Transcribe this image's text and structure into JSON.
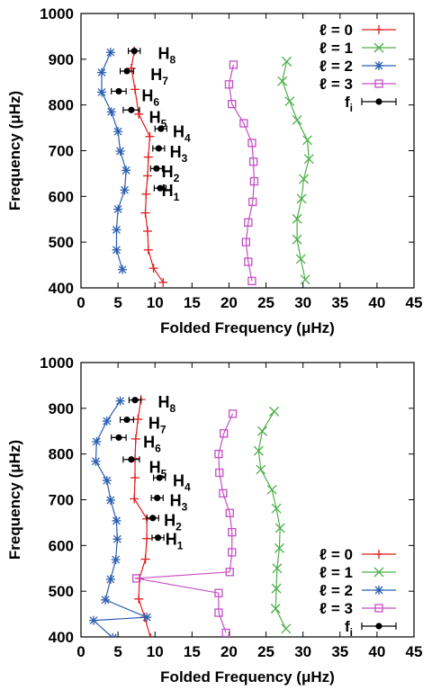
{
  "chart_data": [
    {
      "type": "line",
      "xlabel": "Folded Frequency (μHz)",
      "ylabel": "Frequency (μHz)",
      "xlim": [
        0,
        45
      ],
      "ylim": [
        400,
        1000
      ],
      "x_ticks": [
        "0",
        "5",
        "10",
        "15",
        "20",
        "25",
        "30",
        "35",
        "40",
        "45"
      ],
      "y_ticks": [
        "400",
        "500",
        "600",
        "700",
        "800",
        "900",
        "1000"
      ],
      "legend_position": "top-right",
      "series": [
        {
          "name": "ℓ = 0",
          "color": "#e31a1c",
          "marker": "plus",
          "points": [
            [
              11.1,
              412
            ],
            [
              9.8,
              443
            ],
            [
              9.1,
              483
            ],
            [
              9.0,
              524
            ],
            [
              8.7,
              564
            ],
            [
              8.8,
              605
            ],
            [
              9.0,
              645
            ],
            [
              9.1,
              686
            ],
            [
              9.3,
              731
            ],
            [
              7.8,
              780
            ],
            [
              7.3,
              834
            ],
            [
              6.8,
              880
            ],
            [
              7.2,
              918
            ]
          ]
        },
        {
          "name": "ℓ = 1",
          "color": "#4daf4a",
          "marker": "cross",
          "points": [
            [
              30.3,
              418
            ],
            [
              29.7,
              463
            ],
            [
              29.2,
              506
            ],
            [
              29.2,
              551
            ],
            [
              29.8,
              595
            ],
            [
              30.1,
              638
            ],
            [
              30.8,
              682
            ],
            [
              30.6,
              723
            ],
            [
              29.2,
              767
            ],
            [
              28.2,
              808
            ],
            [
              27.2,
              852
            ],
            [
              27.8,
              895
            ]
          ]
        },
        {
          "name": "ℓ = 2",
          "color": "#2c5fb0",
          "marker": "star",
          "points": [
            [
              5.6,
              440
            ],
            [
              4.8,
              483
            ],
            [
              4.8,
              527
            ],
            [
              5.0,
              572
            ],
            [
              5.9,
              614
            ],
            [
              6.1,
              657
            ],
            [
              5.3,
              699
            ],
            [
              5.0,
              742
            ],
            [
              4.1,
              785
            ],
            [
              2.8,
              828
            ],
            [
              2.8,
              871
            ],
            [
              4.0,
              915
            ]
          ]
        },
        {
          "name": "ℓ = 3",
          "color": "#c44ec4",
          "marker": "square",
          "points": [
            [
              23.1,
              415
            ],
            [
              22.6,
              457
            ],
            [
              22.3,
              500
            ],
            [
              22.6,
              543
            ],
            [
              23.2,
              588
            ],
            [
              23.4,
              633
            ],
            [
              23.3,
              676
            ],
            [
              23.1,
              717
            ],
            [
              22.0,
              760
            ],
            [
              20.4,
              802
            ],
            [
              20.0,
              845
            ],
            [
              20.6,
              888
            ]
          ]
        }
      ],
      "fi": {
        "name": "f",
        "name_sub": "i",
        "color": "#000000",
        "points": [
          [
            10.7,
            618,
            0.8
          ],
          [
            10.2,
            661,
            0.8
          ],
          [
            10.5,
            705,
            0.8
          ],
          [
            10.8,
            748,
            0.8
          ],
          [
            6.8,
            789,
            1.1
          ],
          [
            5.1,
            830,
            1.0
          ],
          [
            6.2,
            874,
            0.9
          ],
          [
            7.2,
            918,
            0.8
          ]
        ]
      },
      "annotations": [
        {
          "label": "H",
          "sub": "1",
          "x": 10.9,
          "y": 612
        },
        {
          "label": "H",
          "sub": "2",
          "x": 10.9,
          "y": 654
        },
        {
          "label": "H",
          "sub": "3",
          "x": 12.0,
          "y": 697
        },
        {
          "label": "H",
          "sub": "4",
          "x": 12.4,
          "y": 741
        },
        {
          "label": "H",
          "sub": "5",
          "x": 9.2,
          "y": 773
        },
        {
          "label": "H",
          "sub": "6",
          "x": 8.2,
          "y": 820
        },
        {
          "label": "H",
          "sub": "7",
          "x": 9.4,
          "y": 866
        },
        {
          "label": "H",
          "sub": "8",
          "x": 10.4,
          "y": 912
        }
      ]
    },
    {
      "type": "line",
      "xlabel": "Folded Frequency (μHz)",
      "ylabel": "Frequency (μHz)",
      "xlim": [
        0,
        45
      ],
      "ylim": [
        400,
        1000
      ],
      "x_ticks": [
        "0",
        "5",
        "10",
        "15",
        "20",
        "25",
        "30",
        "35",
        "40",
        "45"
      ],
      "y_ticks": [
        "400",
        "500",
        "600",
        "700",
        "800",
        "900",
        "1000"
      ],
      "legend_position": "bottom-right",
      "series": [
        {
          "name": "ℓ = 0",
          "color": "#e31a1c",
          "marker": "plus",
          "points": [
            [
              9.4,
              398
            ],
            [
              8.6,
              443
            ],
            [
              7.8,
              483
            ],
            [
              7.9,
              528
            ],
            [
              8.7,
              570
            ],
            [
              8.9,
              615
            ],
            [
              8.9,
              658
            ],
            [
              7.2,
              702
            ],
            [
              7.3,
              748
            ],
            [
              7.3,
              790
            ],
            [
              7.4,
              833
            ],
            [
              7.7,
              876
            ],
            [
              8.1,
              919
            ]
          ]
        },
        {
          "name": "ℓ = 1",
          "color": "#4daf4a",
          "marker": "cross",
          "points": [
            [
              27.7,
              418
            ],
            [
              26.3,
              462
            ],
            [
              26.4,
              506
            ],
            [
              26.5,
              550
            ],
            [
              26.8,
              594
            ],
            [
              26.9,
              638
            ],
            [
              26.4,
              681
            ],
            [
              25.8,
              722
            ],
            [
              24.3,
              766
            ],
            [
              24.0,
              807
            ],
            [
              24.5,
              850
            ],
            [
              26.1,
              893
            ]
          ]
        },
        {
          "name": "ℓ = 2",
          "color": "#2c5fb0",
          "marker": "star",
          "points": [
            [
              4.3,
              398
            ],
            [
              1.7,
              436
            ],
            [
              8.9,
              443
            ],
            [
              3.3,
              481
            ],
            [
              4.0,
              526
            ],
            [
              4.7,
              569
            ],
            [
              4.9,
              614
            ],
            [
              4.8,
              654
            ],
            [
              4.0,
              699
            ],
            [
              3.5,
              742
            ],
            [
              2.0,
              784
            ],
            [
              2.1,
              827
            ],
            [
              3.5,
              872
            ],
            [
              5.3,
              916
            ]
          ]
        },
        {
          "name": "ℓ = 3",
          "color": "#c44ec4",
          "marker": "square",
          "points": [
            [
              19.6,
              409
            ],
            [
              18.6,
              453
            ],
            [
              18.6,
              496
            ],
            [
              7.5,
              528
            ],
            [
              20.1,
              542
            ],
            [
              20.4,
              585
            ],
            [
              20.4,
              629
            ],
            [
              20.1,
              671
            ],
            [
              19.2,
              714
            ],
            [
              18.7,
              759
            ],
            [
              18.6,
              800
            ],
            [
              19.3,
              845
            ],
            [
              20.5,
              888
            ]
          ]
        }
      ],
      "fi": {
        "name": "f",
        "name_sub": "i",
        "color": "#000000",
        "points": [
          [
            10.4,
            617,
            0.8
          ],
          [
            9.7,
            660,
            0.8
          ],
          [
            10.3,
            704,
            0.8
          ],
          [
            10.6,
            748,
            0.8
          ],
          [
            6.8,
            788,
            1.1
          ],
          [
            5.1,
            836,
            1.0
          ],
          [
            6.2,
            875,
            0.9
          ],
          [
            7.3,
            918,
            0.8
          ]
        ]
      },
      "annotations": [
        {
          "label": "H",
          "sub": "1",
          "x": 11.4,
          "y": 613
        },
        {
          "label": "H",
          "sub": "2",
          "x": 11.2,
          "y": 655
        },
        {
          "label": "H",
          "sub": "3",
          "x": 12.0,
          "y": 698
        },
        {
          "label": "H",
          "sub": "4",
          "x": 12.4,
          "y": 741
        },
        {
          "label": "H",
          "sub": "5",
          "x": 9.2,
          "y": 771
        },
        {
          "label": "H",
          "sub": "6",
          "x": 8.4,
          "y": 826
        },
        {
          "label": "H",
          "sub": "7",
          "x": 9.1,
          "y": 867
        },
        {
          "label": "H",
          "sub": "8",
          "x": 10.4,
          "y": 913
        }
      ]
    }
  ]
}
